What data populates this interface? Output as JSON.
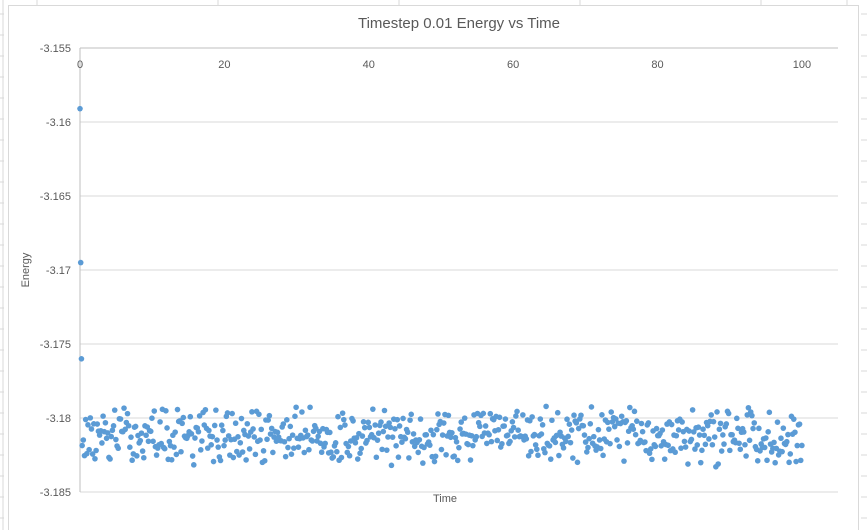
{
  "chart_data": {
    "type": "scatter",
    "title": "Timestep 0.01 Energy vs Time",
    "xlabel": "Time",
    "ylabel": "Energy",
    "legend": false,
    "grid": "horizontal-only",
    "x_axis": {
      "min": 0,
      "max": 105,
      "major_unit": 20,
      "tick_values": [
        0,
        20,
        40,
        60,
        80,
        100
      ],
      "tick_labels": [
        "0",
        "20",
        "40",
        "60",
        "80",
        "100"
      ],
      "labels_position": "top-below-axis"
    },
    "y_axis": {
      "min": -3.185,
      "max": -3.155,
      "major_unit": 0.005,
      "tick_values": [
        -3.155,
        -3.16,
        -3.165,
        -3.17,
        -3.175,
        -3.18,
        -3.185
      ],
      "tick_labels": [
        "-3.155",
        "-3.16",
        "-3.165",
        "-3.17",
        "-3.175",
        "-3.18",
        "-3.185"
      ]
    },
    "series": [
      {
        "name": "Energy",
        "marker": "circle",
        "marker_color": "#5B9BD5",
        "marker_diameter_px": 5.6,
        "transient_points": [
          [
            0.0,
            -3.1591
          ],
          [
            0.1,
            -3.1695
          ],
          [
            0.2,
            -3.176
          ]
        ],
        "equilibrium_band": {
          "description": "dense noisy band after equilibration",
          "n_points": 620,
          "x_start": 0.3,
          "x_end": 100,
          "y_mean": -3.1812,
          "y_half_range": 0.0022,
          "y_observed_range": [
            -3.1835,
            -3.179
          ],
          "distribution": "triangular",
          "seed": 13
        }
      }
    ],
    "colors": {
      "marker": "#5B9BD5",
      "text": "#595959",
      "gridline": "#D9D9D9",
      "axis_line": "#BFBFBF",
      "chart_border": "#D9D9D9",
      "sheet_gridline": "#D8D8D8",
      "background": "#FFFFFF"
    }
  }
}
